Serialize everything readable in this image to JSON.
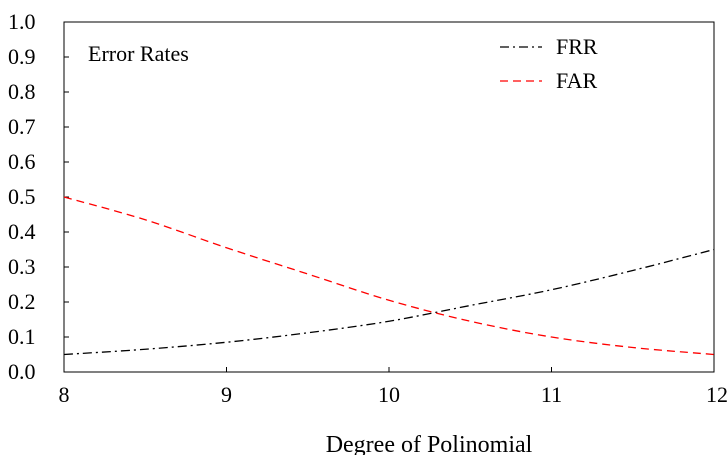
{
  "chart_data": {
    "type": "line",
    "title": "",
    "annotation": "Error Rates",
    "xlabel": "Degree of Polinomial",
    "ylabel": "",
    "xlim": [
      8,
      12
    ],
    "ylim": [
      0.0,
      1.0
    ],
    "x_ticks": [
      "8",
      "9",
      "10",
      "11",
      "12"
    ],
    "y_ticks": [
      "0.0",
      "0.1",
      "0.2",
      "0.3",
      "0.4",
      "0.5",
      "0.6",
      "0.7",
      "0.8",
      "0.9",
      "1.0"
    ],
    "grid": false,
    "legend_position": "top-right",
    "series": [
      {
        "name": "FRR",
        "color": "#000000",
        "dash": "dash-dot",
        "x": [
          8.0,
          8.5,
          9.0,
          9.5,
          10.0,
          10.5,
          11.0,
          11.5,
          12.0
        ],
        "y": [
          0.05,
          0.065,
          0.085,
          0.112,
          0.145,
          0.19,
          0.235,
          0.29,
          0.35
        ]
      },
      {
        "name": "FAR",
        "color": "#ff0000",
        "dash": "dashed",
        "x": [
          8.0,
          8.5,
          9.0,
          9.5,
          10.0,
          10.5,
          11.0,
          11.5,
          12.0
        ],
        "y": [
          0.5,
          0.435,
          0.355,
          0.28,
          0.205,
          0.145,
          0.1,
          0.07,
          0.05
        ]
      }
    ]
  }
}
